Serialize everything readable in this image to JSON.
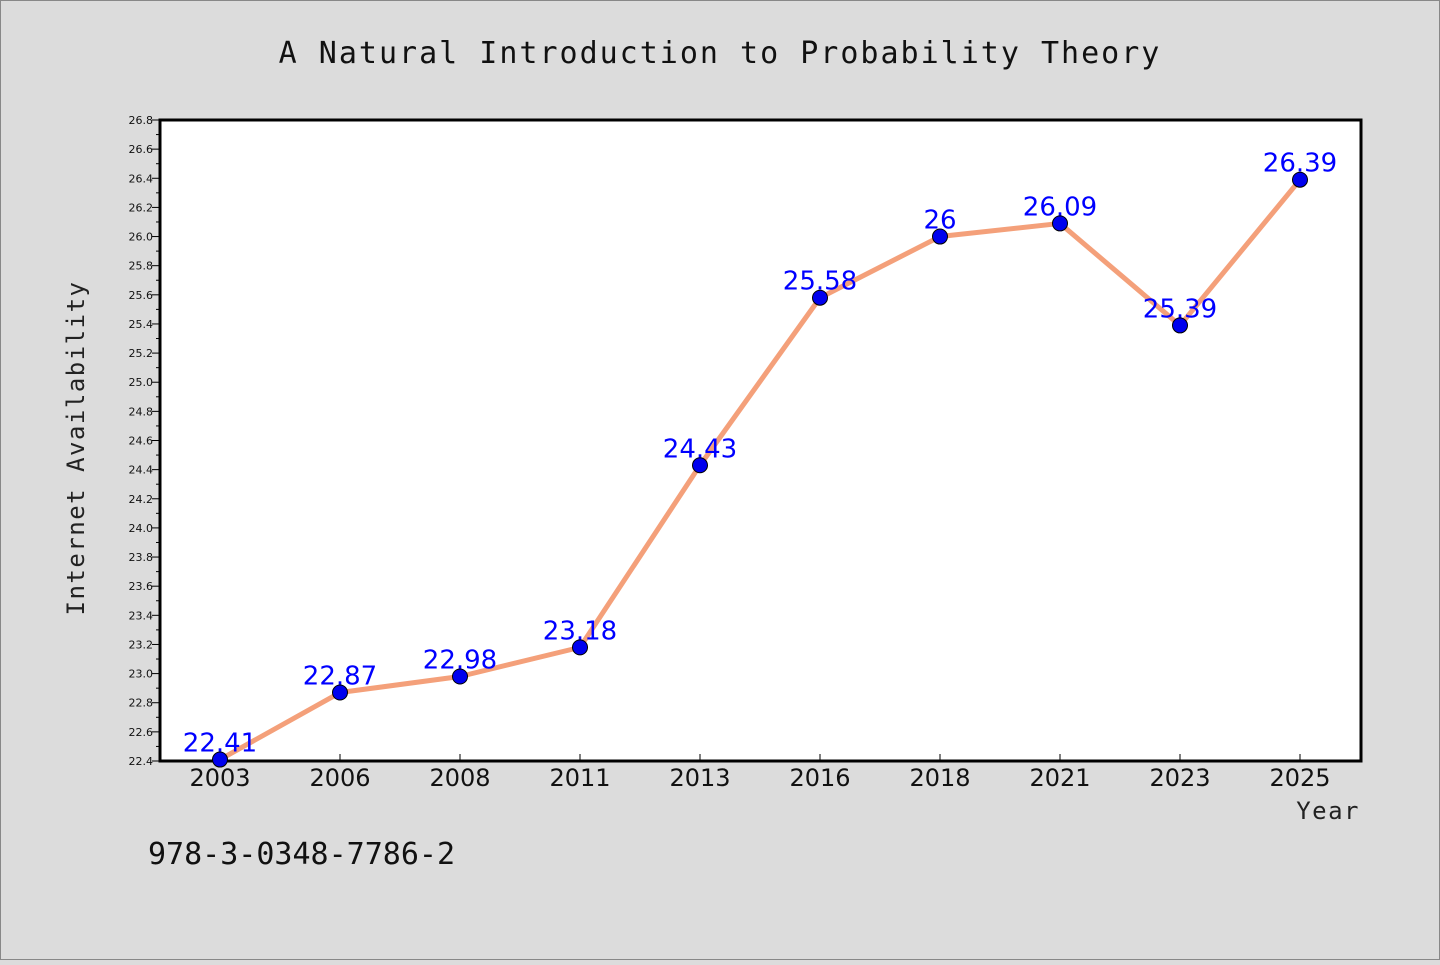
{
  "chart_data": {
    "type": "line",
    "title": "A Natural Introduction to Probability Theory",
    "xlabel": "Year",
    "ylabel": "Internet Availability",
    "categories": [
      "2003",
      "2006",
      "2008",
      "2011",
      "2013",
      "2016",
      "2018",
      "2021",
      "2023",
      "2025"
    ],
    "values": [
      22.41,
      22.87,
      22.98,
      23.18,
      24.43,
      25.58,
      26.0,
      26.09,
      25.39,
      26.39
    ],
    "data_labels": [
      "22.41",
      "22.87",
      "22.98",
      "23.18",
      "24.43",
      "25.58",
      "26",
      "26.09",
      "25.39",
      "26.39"
    ],
    "ylim": [
      22.4,
      26.8
    ],
    "yticks": [
      "22.4",
      "22.6",
      "22.8",
      "23.0",
      "23.2",
      "23.4",
      "23.6",
      "23.8",
      "24.0",
      "24.2",
      "24.4",
      "24.6",
      "24.8",
      "25.0",
      "25.2",
      "25.4",
      "25.6",
      "25.8",
      "26.0",
      "26.2",
      "26.4",
      "26.6",
      "26.8"
    ],
    "grid": false,
    "line_color": "#f4a07a",
    "marker_color": "#0000ee",
    "label_color": "#0000ff",
    "background_color": "#dcdcdc",
    "plot_background_color": "#ffffff"
  },
  "footer": {
    "isbn": "978-3-0348-7786-2"
  }
}
